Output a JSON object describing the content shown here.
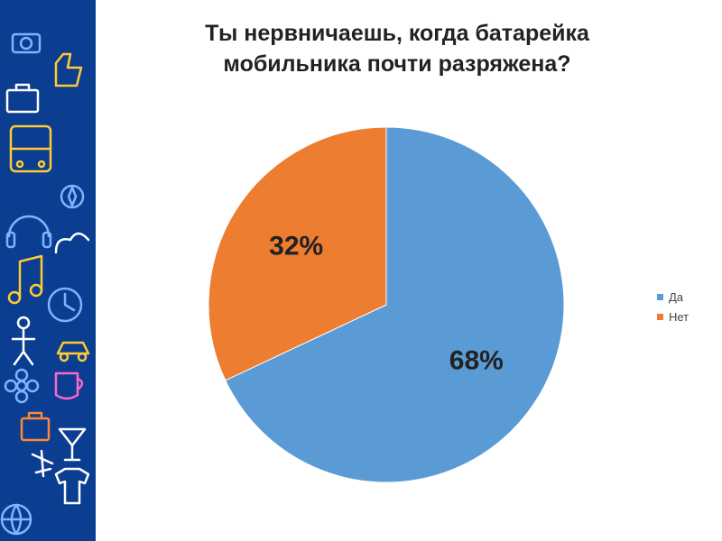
{
  "slide": {
    "title_lines": [
      "Ты нервничаешь, когда батарейка",
      "мобильника почти разряжена?"
    ],
    "side_panel_color": "#0b3d91",
    "side_panel_icons": [
      "camera-icon",
      "thumbs-up-icon",
      "briefcase-icon",
      "tram-icon",
      "headphones-icon",
      "cloud-icon",
      "music-note-icon",
      "clock-icon",
      "person-icon",
      "car-icon",
      "flower-icon",
      "coffee-cup-icon",
      "bag-icon",
      "cocktail-icon",
      "airplane-icon",
      "tshirt-icon",
      "ball-icon"
    ]
  },
  "chart_data": {
    "type": "pie",
    "title": "Ты нервничаешь, когда батарейка мобильника почти разряжена?",
    "categories": [
      "Да",
      "Нет"
    ],
    "values": [
      68,
      32
    ],
    "labels": [
      "68%",
      "32%"
    ],
    "colors": [
      "#5b9bd5",
      "#ed7d31"
    ],
    "start_angle_deg": 0,
    "direction": "clockwise",
    "legend_position": "right"
  }
}
